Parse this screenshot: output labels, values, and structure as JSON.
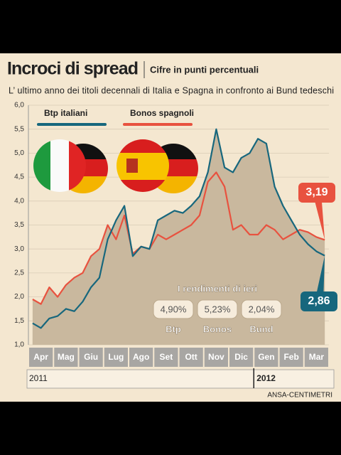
{
  "chart_data": {
    "type": "line",
    "title": "Incroci di spread",
    "subtitle_unit": "Cifre in punti percentuali",
    "subtitle": "L’ ultimo anno dei titoli decennali di Italia e Spagna in confronto ai Bund tedeschi",
    "categories": [
      null,
      "Apr",
      null,
      null,
      "Mag",
      null,
      null,
      "Giu",
      null,
      null,
      "Lug",
      null,
      null,
      "Ago",
      null,
      null,
      "Set",
      null,
      null,
      "Ott",
      null,
      null,
      "Nov",
      null,
      null,
      "Dic",
      null,
      null,
      "Gen",
      null,
      null,
      "Feb",
      null,
      null,
      "Mar",
      null
    ],
    "series": [
      {
        "name": "Btp italiani",
        "color": "#17677d",
        "values": [
          1.45,
          1.35,
          1.55,
          1.6,
          1.75,
          1.7,
          1.9,
          2.2,
          2.4,
          3.2,
          3.6,
          3.9,
          2.85,
          3.05,
          3.0,
          3.6,
          3.7,
          3.8,
          3.75,
          3.9,
          4.1,
          4.6,
          5.5,
          4.7,
          4.6,
          4.9,
          5.0,
          5.3,
          5.2,
          4.3,
          3.9,
          3.6,
          3.3,
          3.1,
          2.95,
          2.86
        ],
        "value_labels": [
          null,
          null,
          null,
          null,
          null,
          null,
          null,
          null,
          null,
          null,
          null,
          null,
          null,
          null,
          null,
          null,
          null,
          null,
          null,
          null,
          null,
          null,
          null,
          null,
          null,
          null,
          null,
          null,
          null,
          null,
          null,
          null,
          null,
          null,
          null,
          "2,86"
        ]
      },
      {
        "name": "Bonos spagnoli",
        "color": "#e8523f",
        "values": [
          1.95,
          1.85,
          2.2,
          2.0,
          2.25,
          2.4,
          2.5,
          2.85,
          3.0,
          3.5,
          3.2,
          3.7,
          2.9,
          3.05,
          3.0,
          3.3,
          3.2,
          3.3,
          3.4,
          3.5,
          3.7,
          4.4,
          4.6,
          4.3,
          3.4,
          3.5,
          3.3,
          3.3,
          3.5,
          3.4,
          3.2,
          3.3,
          3.4,
          3.35,
          3.25,
          3.19
        ],
        "value_labels": [
          null,
          null,
          null,
          null,
          null,
          null,
          null,
          null,
          null,
          null,
          null,
          null,
          null,
          null,
          null,
          null,
          null,
          null,
          null,
          null,
          null,
          null,
          null,
          null,
          null,
          null,
          null,
          null,
          null,
          null,
          null,
          null,
          null,
          null,
          null,
          "3,19"
        ]
      }
    ],
    "area_color": "#c9b89e",
    "ylim": [
      1.0,
      6.0
    ],
    "yticks": [
      {
        "value": 1.0,
        "label": "1,0"
      },
      {
        "value": 1.5,
        "label": "1,5"
      },
      {
        "value": 2.0,
        "label": "2,0"
      },
      {
        "value": 2.5,
        "label": "2,5"
      },
      {
        "value": 3.0,
        "label": "3,0"
      },
      {
        "value": 3.5,
        "label": "3,5"
      },
      {
        "value": 4.0,
        "label": "4,0"
      },
      {
        "value": 4.5,
        "label": "4,5"
      },
      {
        "value": 5.0,
        "label": "5,0"
      },
      {
        "value": 5.5,
        "label": "5,5"
      },
      {
        "value": 6.0,
        "label": "6,0"
      }
    ],
    "grid": true,
    "legend": "top-left",
    "years": [
      "2011",
      "2012"
    ],
    "yields": {
      "title": "I rendimenti di ieri",
      "items": [
        {
          "name": "Btp",
          "label": "4,90%"
        },
        {
          "name": "Bonos",
          "label": "5,23%"
        },
        {
          "name": "Bund",
          "label": "2,04%"
        }
      ]
    },
    "source": "ANSA-CENTIMETRI"
  }
}
